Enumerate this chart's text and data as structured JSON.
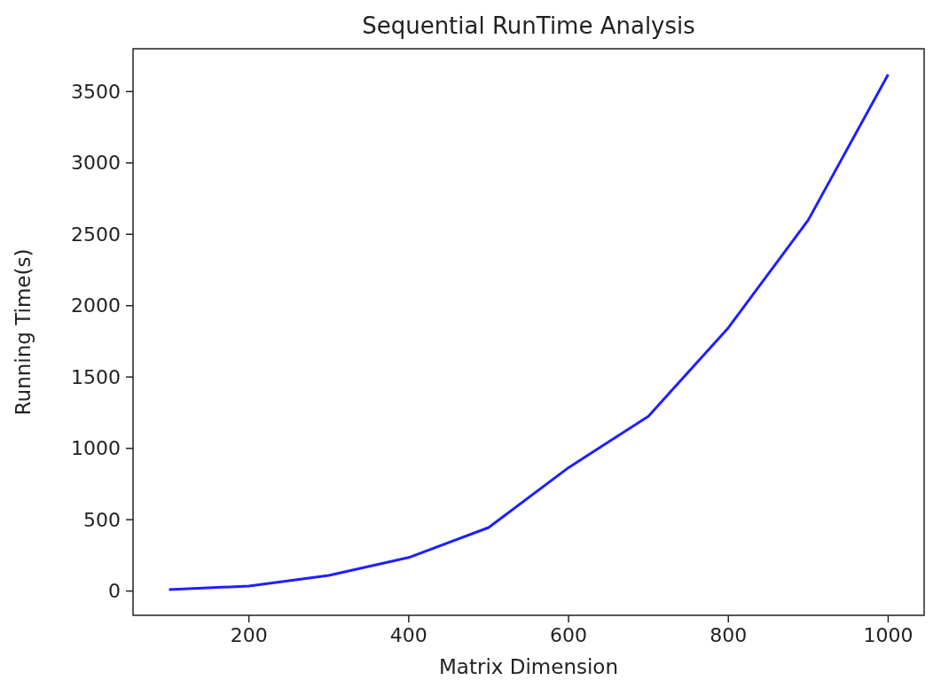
{
  "chart_data": {
    "type": "line",
    "title": "Sequential RunTime Analysis",
    "xlabel": "Matrix Dimension",
    "ylabel": "Running Time(s)",
    "x": [
      100,
      200,
      300,
      400,
      500,
      600,
      700,
      800,
      900,
      1000
    ],
    "series": [
      {
        "color": "#1f1fff",
        "values": [
          10,
          35,
          110,
          235,
          445,
          865,
          1225,
          1845,
          2600,
          3620
        ]
      }
    ],
    "xlim": [
      55,
      1045
    ],
    "ylim": [
      -170,
      3800
    ],
    "xticks": [
      200,
      400,
      600,
      800,
      1000
    ],
    "yticks": [
      0,
      500,
      1000,
      1500,
      2000,
      2500,
      3000,
      3500
    ]
  }
}
